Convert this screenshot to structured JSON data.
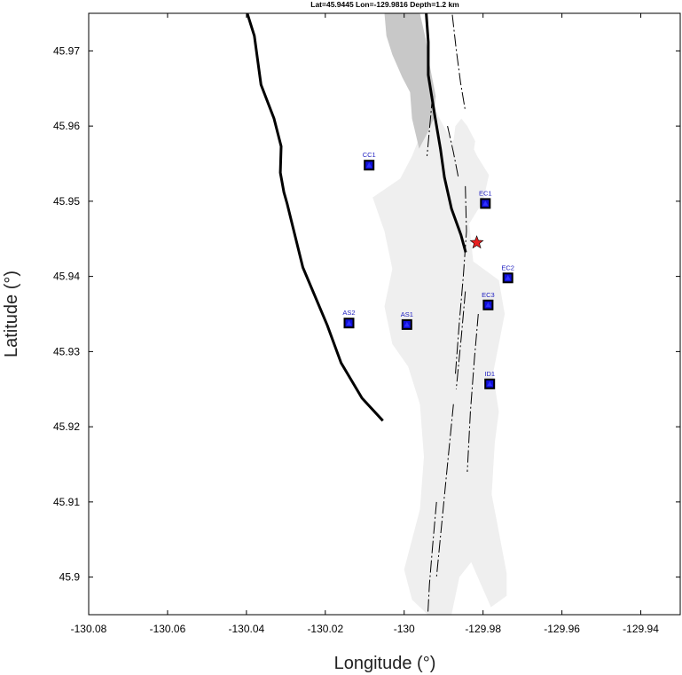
{
  "title": "Lat=45.9445  Lon=-129.9816  Depth=1.2 km",
  "x_axis": {
    "label": "Longitude (°)",
    "range": [
      -130.08,
      -129.93
    ],
    "ticks": [
      -130.08,
      -130.06,
      -130.04,
      -130.02,
      -130,
      -129.98,
      -129.96,
      -129.94
    ],
    "tick_labels": [
      "-130.08",
      "-130.06",
      "-130.04",
      "-130.02",
      "-130",
      "-129.98",
      "-129.96",
      "-129.94"
    ]
  },
  "y_axis": {
    "label": "Latitude (°)",
    "range": [
      45.895,
      45.975
    ],
    "ticks": [
      45.9,
      45.91,
      45.92,
      45.93,
      45.94,
      45.95,
      45.96,
      45.97
    ],
    "tick_labels": [
      "45.9",
      "45.91",
      "45.92",
      "45.93",
      "45.94",
      "45.95",
      "45.96",
      "45.97"
    ]
  },
  "stations": [
    {
      "name": "CC1",
      "lon": -130.0089,
      "lat": 45.9548
    },
    {
      "name": "EC1",
      "lon": -129.9794,
      "lat": 45.9497
    },
    {
      "name": "EC2",
      "lon": -129.9737,
      "lat": 45.9398
    },
    {
      "name": "EC3",
      "lon": -129.9787,
      "lat": 45.9362
    },
    {
      "name": "AS2",
      "lon": -130.014,
      "lat": 45.9338
    },
    {
      "name": "AS1",
      "lon": -129.9993,
      "lat": 45.9336
    },
    {
      "name": "ID1",
      "lon": -129.9783,
      "lat": 45.9257
    }
  ],
  "event": {
    "lon": -129.9816,
    "lat": 45.9445,
    "depth_km": 1.2
  },
  "colors": {
    "lava_light": "#efefef",
    "lava_dark": "#c8c8c8",
    "station_fill": "#1010d8",
    "station_edge": "#000000",
    "station_label": "#2020c0",
    "event_fill": "#e82020",
    "line": "#000000"
  },
  "caldera_west": [
    [
      -130.0398,
      45.975
    ],
    [
      -130.038,
      45.972
    ],
    [
      -130.0363,
      45.9655
    ],
    [
      -130.033,
      45.961
    ],
    [
      -130.0312,
      45.9573
    ],
    [
      -130.0314,
      45.9538
    ],
    [
      -130.0305,
      45.9512
    ],
    [
      -130.0297,
      45.9497
    ],
    [
      -130.0257,
      45.9412
    ],
    [
      -130.0195,
      45.9335
    ],
    [
      -130.016,
      45.9285
    ],
    [
      -130.0107,
      45.9238
    ],
    [
      -130.0054,
      45.9208
    ]
  ],
  "caldera_east": [
    [
      -129.9944,
      45.975
    ],
    [
      -129.9939,
      45.9712
    ],
    [
      -129.9939,
      45.9668
    ],
    [
      -129.9922,
      45.9613
    ],
    [
      -129.9908,
      45.957
    ],
    [
      -129.9898,
      45.9532
    ],
    [
      -129.988,
      45.949
    ],
    [
      -129.9856,
      45.9455
    ],
    [
      -129.9844,
      45.9432
    ]
  ],
  "fissures": [
    [
      [
        -129.9878,
        45.9748
      ],
      [
        -129.9868,
        45.9702
      ],
      [
        -129.9857,
        45.9658
      ],
      [
        -129.9845,
        45.962
      ]
    ],
    [
      [
        -129.9928,
        45.964
      ],
      [
        -129.9935,
        45.96
      ],
      [
        -129.9942,
        45.956
      ]
    ],
    [
      [
        -129.989,
        45.96
      ],
      [
        -129.9875,
        45.9565
      ],
      [
        -129.9862,
        45.953
      ]
    ],
    [
      [
        -129.9845,
        45.952
      ],
      [
        -129.9842,
        45.946
      ],
      [
        -129.985,
        45.94
      ],
      [
        -129.986,
        45.934
      ],
      [
        -129.987,
        45.927
      ]
    ],
    [
      [
        -129.9845,
        45.938
      ],
      [
        -129.9855,
        45.932
      ],
      [
        -129.9868,
        45.925
      ]
    ],
    [
      [
        -129.9812,
        45.935
      ],
      [
        -129.9822,
        45.929
      ],
      [
        -129.9832,
        45.922
      ],
      [
        -129.984,
        45.914
      ]
    ],
    [
      [
        -129.9875,
        45.923
      ],
      [
        -129.989,
        45.915
      ],
      [
        -129.9905,
        45.907
      ],
      [
        -129.9918,
        45.9
      ]
    ],
    [
      [
        -129.9918,
        45.91
      ],
      [
        -129.9928,
        45.904
      ],
      [
        -129.9936,
        45.899
      ],
      [
        -129.994,
        45.895
      ]
    ]
  ],
  "lava_light": [
    [
      [
        -129.9935,
        45.965
      ],
      [
        -129.9915,
        45.9615
      ],
      [
        -129.988,
        45.958
      ],
      [
        -129.9842,
        45.959
      ],
      [
        -129.9815,
        45.956
      ],
      [
        -129.9785,
        45.9535
      ],
      [
        -129.98,
        45.95
      ],
      [
        -129.9835,
        45.947
      ],
      [
        -129.9825,
        45.942
      ],
      [
        -129.976,
        45.9395
      ],
      [
        -129.9745,
        45.935
      ],
      [
        -129.976,
        45.931
      ],
      [
        -129.9775,
        45.927
      ],
      [
        -129.976,
        45.922
      ],
      [
        -129.977,
        45.918
      ],
      [
        -129.9778,
        45.911
      ],
      [
        -129.976,
        45.906
      ],
      [
        -129.974,
        45.9005
      ],
      [
        -129.974,
        45.8975
      ],
      [
        -129.978,
        45.896
      ],
      [
        -129.9805,
        45.899
      ],
      [
        -129.983,
        45.902
      ],
      [
        -129.986,
        45.9
      ],
      [
        -129.988,
        45.895
      ],
      [
        -129.994,
        45.895
      ],
      [
        -129.998,
        45.897
      ],
      [
        -130.0,
        45.901
      ],
      [
        -129.996,
        45.909
      ],
      [
        -129.995,
        45.916
      ],
      [
        -129.996,
        45.923
      ],
      [
        -129.999,
        45.928
      ],
      [
        -130.003,
        45.931
      ],
      [
        -130.005,
        45.936
      ],
      [
        -130.003,
        45.941
      ],
      [
        -130.005,
        45.946
      ],
      [
        -130.008,
        45.9505
      ],
      [
        -130.001,
        45.953
      ],
      [
        -129.998,
        45.956
      ],
      [
        -129.995,
        45.96
      ],
      [
        -129.9935,
        45.965
      ]
    ],
    [
      [
        -129.9855,
        45.961
      ],
      [
        -129.984,
        45.96
      ],
      [
        -129.982,
        45.958
      ],
      [
        -129.983,
        45.9545
      ],
      [
        -129.986,
        45.9525
      ],
      [
        -129.988,
        45.956
      ],
      [
        -129.987,
        45.96
      ],
      [
        -129.9855,
        45.961
      ]
    ]
  ],
  "lava_dark": [
    [
      [
        -130.005,
        45.975
      ],
      [
        -129.996,
        45.975
      ],
      [
        -129.9945,
        45.9715
      ],
      [
        -129.9935,
        45.968
      ],
      [
        -129.992,
        45.964
      ],
      [
        -129.9925,
        45.961
      ],
      [
        -129.9942,
        45.959
      ],
      [
        -129.9962,
        45.957
      ],
      [
        -129.998,
        45.961
      ],
      [
        -129.9985,
        45.9645
      ],
      [
        -130.0005,
        45.9665
      ],
      [
        -130.003,
        45.9695
      ],
      [
        -130.0045,
        45.972
      ],
      [
        -130.005,
        45.975
      ]
    ]
  ]
}
